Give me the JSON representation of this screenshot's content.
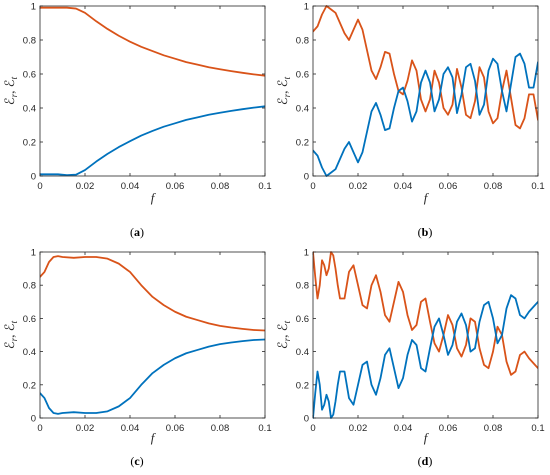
{
  "colors": {
    "reflection": "#d95319",
    "transmission": "#0072bd",
    "axis": "#262626"
  },
  "chart_data": [
    {
      "type": "line",
      "panel": "a",
      "caption_letter": "a",
      "xlabel": "f",
      "ylabel_main": "ℰ",
      "ylabel_sub1": "r",
      "ylabel_sub2": "t",
      "xlim": [
        0,
        0.1
      ],
      "ylim": [
        0,
        1
      ],
      "xticks": [
        "0",
        "0.02",
        "0.04",
        "0.06",
        "0.08",
        "0.1"
      ],
      "yticks": [
        "0",
        "0.2",
        "0.4",
        "0.6",
        "0.8",
        "1"
      ],
      "series": [
        {
          "color": "#d95319",
          "x": [
            0,
            0.004,
            0.008,
            0.012,
            0.016,
            0.02,
            0.025,
            0.03,
            0.035,
            0.04,
            0.045,
            0.05,
            0.055,
            0.06,
            0.065,
            0.07,
            0.075,
            0.08,
            0.085,
            0.09,
            0.095,
            0.1
          ],
          "y": [
            0.99,
            0.99,
            0.99,
            0.99,
            0.985,
            0.96,
            0.91,
            0.865,
            0.825,
            0.79,
            0.76,
            0.735,
            0.71,
            0.69,
            0.67,
            0.655,
            0.64,
            0.628,
            0.617,
            0.607,
            0.598,
            0.59
          ]
        },
        {
          "color": "#0072bd",
          "x": [
            0,
            0.004,
            0.008,
            0.012,
            0.016,
            0.02,
            0.025,
            0.03,
            0.035,
            0.04,
            0.045,
            0.05,
            0.055,
            0.06,
            0.065,
            0.07,
            0.075,
            0.08,
            0.085,
            0.09,
            0.095,
            0.1
          ],
          "y": [
            0.01,
            0.01,
            0.01,
            0.005,
            0.008,
            0.035,
            0.085,
            0.13,
            0.17,
            0.205,
            0.238,
            0.265,
            0.29,
            0.31,
            0.33,
            0.345,
            0.36,
            0.372,
            0.383,
            0.393,
            0.402,
            0.41
          ]
        }
      ]
    },
    {
      "type": "line",
      "panel": "b",
      "caption_letter": "b",
      "xlabel": "f",
      "ylabel_main": "ℰ",
      "ylabel_sub1": "r",
      "ylabel_sub2": "t",
      "xlim": [
        0,
        0.1
      ],
      "ylim": [
        0,
        1
      ],
      "xticks": [
        "0",
        "0.02",
        "0.04",
        "0.06",
        "0.08",
        "0.1"
      ],
      "yticks": [
        "0",
        "0.2",
        "0.4",
        "0.6",
        "0.8",
        "1"
      ],
      "series": [
        {
          "color": "#d95319",
          "x": [
            0,
            0.002,
            0.004,
            0.006,
            0.008,
            0.01,
            0.012,
            0.014,
            0.016,
            0.018,
            0.02,
            0.022,
            0.024,
            0.026,
            0.028,
            0.03,
            0.032,
            0.034,
            0.036,
            0.038,
            0.04,
            0.042,
            0.044,
            0.046,
            0.048,
            0.05,
            0.052,
            0.054,
            0.056,
            0.058,
            0.06,
            0.062,
            0.064,
            0.066,
            0.068,
            0.07,
            0.072,
            0.074,
            0.076,
            0.078,
            0.08,
            0.082,
            0.084,
            0.086,
            0.088,
            0.09,
            0.092,
            0.094,
            0.096,
            0.098,
            0.1
          ],
          "y": [
            0.85,
            0.88,
            0.95,
            1.0,
            0.98,
            0.96,
            0.9,
            0.84,
            0.8,
            0.86,
            0.92,
            0.86,
            0.74,
            0.62,
            0.57,
            0.64,
            0.73,
            0.72,
            0.6,
            0.5,
            0.48,
            0.56,
            0.68,
            0.62,
            0.45,
            0.38,
            0.45,
            0.62,
            0.55,
            0.4,
            0.36,
            0.42,
            0.63,
            0.52,
            0.36,
            0.34,
            0.44,
            0.64,
            0.58,
            0.38,
            0.31,
            0.34,
            0.5,
            0.62,
            0.46,
            0.3,
            0.28,
            0.34,
            0.48,
            0.48,
            0.33
          ]
        },
        {
          "color": "#0072bd",
          "x": [
            0,
            0.002,
            0.004,
            0.006,
            0.008,
            0.01,
            0.012,
            0.014,
            0.016,
            0.018,
            0.02,
            0.022,
            0.024,
            0.026,
            0.028,
            0.03,
            0.032,
            0.034,
            0.036,
            0.038,
            0.04,
            0.042,
            0.044,
            0.046,
            0.048,
            0.05,
            0.052,
            0.054,
            0.056,
            0.058,
            0.06,
            0.062,
            0.064,
            0.066,
            0.068,
            0.07,
            0.072,
            0.074,
            0.076,
            0.078,
            0.08,
            0.082,
            0.084,
            0.086,
            0.088,
            0.09,
            0.092,
            0.094,
            0.096,
            0.098,
            0.1
          ],
          "y": [
            0.15,
            0.12,
            0.05,
            0.0,
            0.02,
            0.04,
            0.1,
            0.16,
            0.2,
            0.14,
            0.08,
            0.14,
            0.26,
            0.38,
            0.43,
            0.36,
            0.27,
            0.28,
            0.4,
            0.5,
            0.52,
            0.44,
            0.32,
            0.38,
            0.55,
            0.62,
            0.55,
            0.38,
            0.45,
            0.6,
            0.64,
            0.58,
            0.37,
            0.48,
            0.64,
            0.66,
            0.56,
            0.36,
            0.42,
            0.62,
            0.69,
            0.66,
            0.5,
            0.38,
            0.54,
            0.7,
            0.72,
            0.66,
            0.52,
            0.52,
            0.67
          ]
        }
      ]
    },
    {
      "type": "line",
      "panel": "c",
      "caption_letter": "c",
      "xlabel": "f",
      "ylabel_main": "ℰ",
      "ylabel_sub1": "r",
      "ylabel_sub2": "t",
      "xlim": [
        0,
        0.1
      ],
      "ylim": [
        0,
        1
      ],
      "xticks": [
        "0",
        "0.02",
        "0.04",
        "0.06",
        "0.08",
        "0.1"
      ],
      "yticks": [
        "0",
        "0.2",
        "0.4",
        "0.6",
        "0.8",
        "1"
      ],
      "series": [
        {
          "color": "#d95319",
          "x": [
            0,
            0.002,
            0.004,
            0.006,
            0.008,
            0.01,
            0.015,
            0.02,
            0.025,
            0.03,
            0.035,
            0.04,
            0.045,
            0.05,
            0.055,
            0.06,
            0.065,
            0.07,
            0.075,
            0.08,
            0.085,
            0.09,
            0.095,
            0.1
          ],
          "y": [
            0.85,
            0.88,
            0.94,
            0.97,
            0.975,
            0.97,
            0.965,
            0.97,
            0.97,
            0.96,
            0.93,
            0.88,
            0.8,
            0.73,
            0.68,
            0.64,
            0.61,
            0.59,
            0.57,
            0.555,
            0.545,
            0.537,
            0.53,
            0.527
          ]
        },
        {
          "color": "#0072bd",
          "x": [
            0,
            0.002,
            0.004,
            0.006,
            0.008,
            0.01,
            0.015,
            0.02,
            0.025,
            0.03,
            0.035,
            0.04,
            0.045,
            0.05,
            0.055,
            0.06,
            0.065,
            0.07,
            0.075,
            0.08,
            0.085,
            0.09,
            0.095,
            0.1
          ],
          "y": [
            0.15,
            0.12,
            0.06,
            0.03,
            0.025,
            0.03,
            0.035,
            0.03,
            0.03,
            0.04,
            0.07,
            0.12,
            0.2,
            0.27,
            0.32,
            0.36,
            0.39,
            0.41,
            0.43,
            0.445,
            0.455,
            0.463,
            0.47,
            0.473
          ]
        }
      ]
    },
    {
      "type": "line",
      "panel": "d",
      "caption_letter": "d",
      "xlabel": "f",
      "ylabel_main": "ℰ",
      "ylabel_sub1": "r",
      "ylabel_sub2": "t",
      "xlim": [
        0,
        0.1
      ],
      "ylim": [
        0,
        1
      ],
      "xticks": [
        "0",
        "0.02",
        "0.04",
        "0.06",
        "0.08",
        "0.1"
      ],
      "yticks": [
        "0",
        "0.2",
        "0.4",
        "0.6",
        "0.8",
        "1"
      ],
      "series": [
        {
          "color": "#d95319",
          "x": [
            0,
            0.001,
            0.002,
            0.003,
            0.004,
            0.005,
            0.006,
            0.007,
            0.008,
            0.009,
            0.01,
            0.011,
            0.012,
            0.014,
            0.016,
            0.018,
            0.02,
            0.022,
            0.024,
            0.026,
            0.028,
            0.03,
            0.032,
            0.034,
            0.036,
            0.038,
            0.04,
            0.042,
            0.044,
            0.046,
            0.048,
            0.05,
            0.052,
            0.054,
            0.056,
            0.058,
            0.06,
            0.062,
            0.064,
            0.066,
            0.068,
            0.07,
            0.072,
            0.074,
            0.076,
            0.078,
            0.08,
            0.082,
            0.084,
            0.086,
            0.088,
            0.09,
            0.092,
            0.094,
            0.096,
            0.098,
            0.1
          ],
          "y": [
            1.0,
            0.85,
            0.72,
            0.8,
            0.95,
            0.92,
            0.86,
            0.9,
            1.0,
            0.98,
            0.9,
            0.8,
            0.72,
            0.72,
            0.88,
            0.92,
            0.8,
            0.68,
            0.66,
            0.8,
            0.86,
            0.76,
            0.62,
            0.58,
            0.7,
            0.82,
            0.76,
            0.62,
            0.53,
            0.56,
            0.7,
            0.72,
            0.58,
            0.45,
            0.4,
            0.5,
            0.62,
            0.56,
            0.42,
            0.37,
            0.44,
            0.6,
            0.58,
            0.42,
            0.32,
            0.3,
            0.4,
            0.55,
            0.5,
            0.34,
            0.26,
            0.28,
            0.38,
            0.4,
            0.36,
            0.33,
            0.3
          ]
        },
        {
          "color": "#0072bd",
          "x": [
            0,
            0.001,
            0.002,
            0.003,
            0.004,
            0.005,
            0.006,
            0.007,
            0.008,
            0.009,
            0.01,
            0.011,
            0.012,
            0.014,
            0.016,
            0.018,
            0.02,
            0.022,
            0.024,
            0.026,
            0.028,
            0.03,
            0.032,
            0.034,
            0.036,
            0.038,
            0.04,
            0.042,
            0.044,
            0.046,
            0.048,
            0.05,
            0.052,
            0.054,
            0.056,
            0.058,
            0.06,
            0.062,
            0.064,
            0.066,
            0.068,
            0.07,
            0.072,
            0.074,
            0.076,
            0.078,
            0.08,
            0.082,
            0.084,
            0.086,
            0.088,
            0.09,
            0.092,
            0.094,
            0.096,
            0.098,
            0.1
          ],
          "y": [
            0.0,
            0.15,
            0.28,
            0.2,
            0.05,
            0.08,
            0.14,
            0.1,
            0.0,
            0.02,
            0.1,
            0.2,
            0.28,
            0.28,
            0.12,
            0.08,
            0.2,
            0.32,
            0.34,
            0.2,
            0.14,
            0.24,
            0.38,
            0.42,
            0.3,
            0.18,
            0.24,
            0.38,
            0.47,
            0.44,
            0.3,
            0.28,
            0.42,
            0.55,
            0.6,
            0.5,
            0.38,
            0.44,
            0.58,
            0.63,
            0.56,
            0.4,
            0.42,
            0.58,
            0.68,
            0.7,
            0.6,
            0.45,
            0.5,
            0.66,
            0.74,
            0.72,
            0.62,
            0.6,
            0.64,
            0.67,
            0.7
          ]
        }
      ]
    }
  ]
}
